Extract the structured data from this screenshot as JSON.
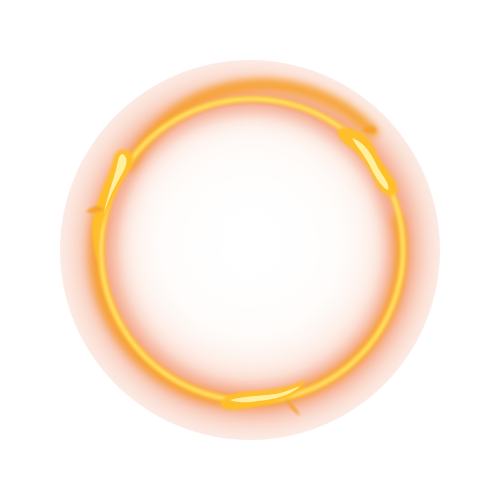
{
  "image": {
    "subject": "glowing-fire-ring",
    "colors": {
      "background": "#ffffff",
      "halo_outer": "#fbe7de",
      "halo_inner": "#f6c8b4",
      "ember_red": "#ef7a52",
      "flame_orange": "#f7a12a",
      "flame_yellow": "#ffd23a",
      "flame_core": "#fff1a8"
    }
  }
}
